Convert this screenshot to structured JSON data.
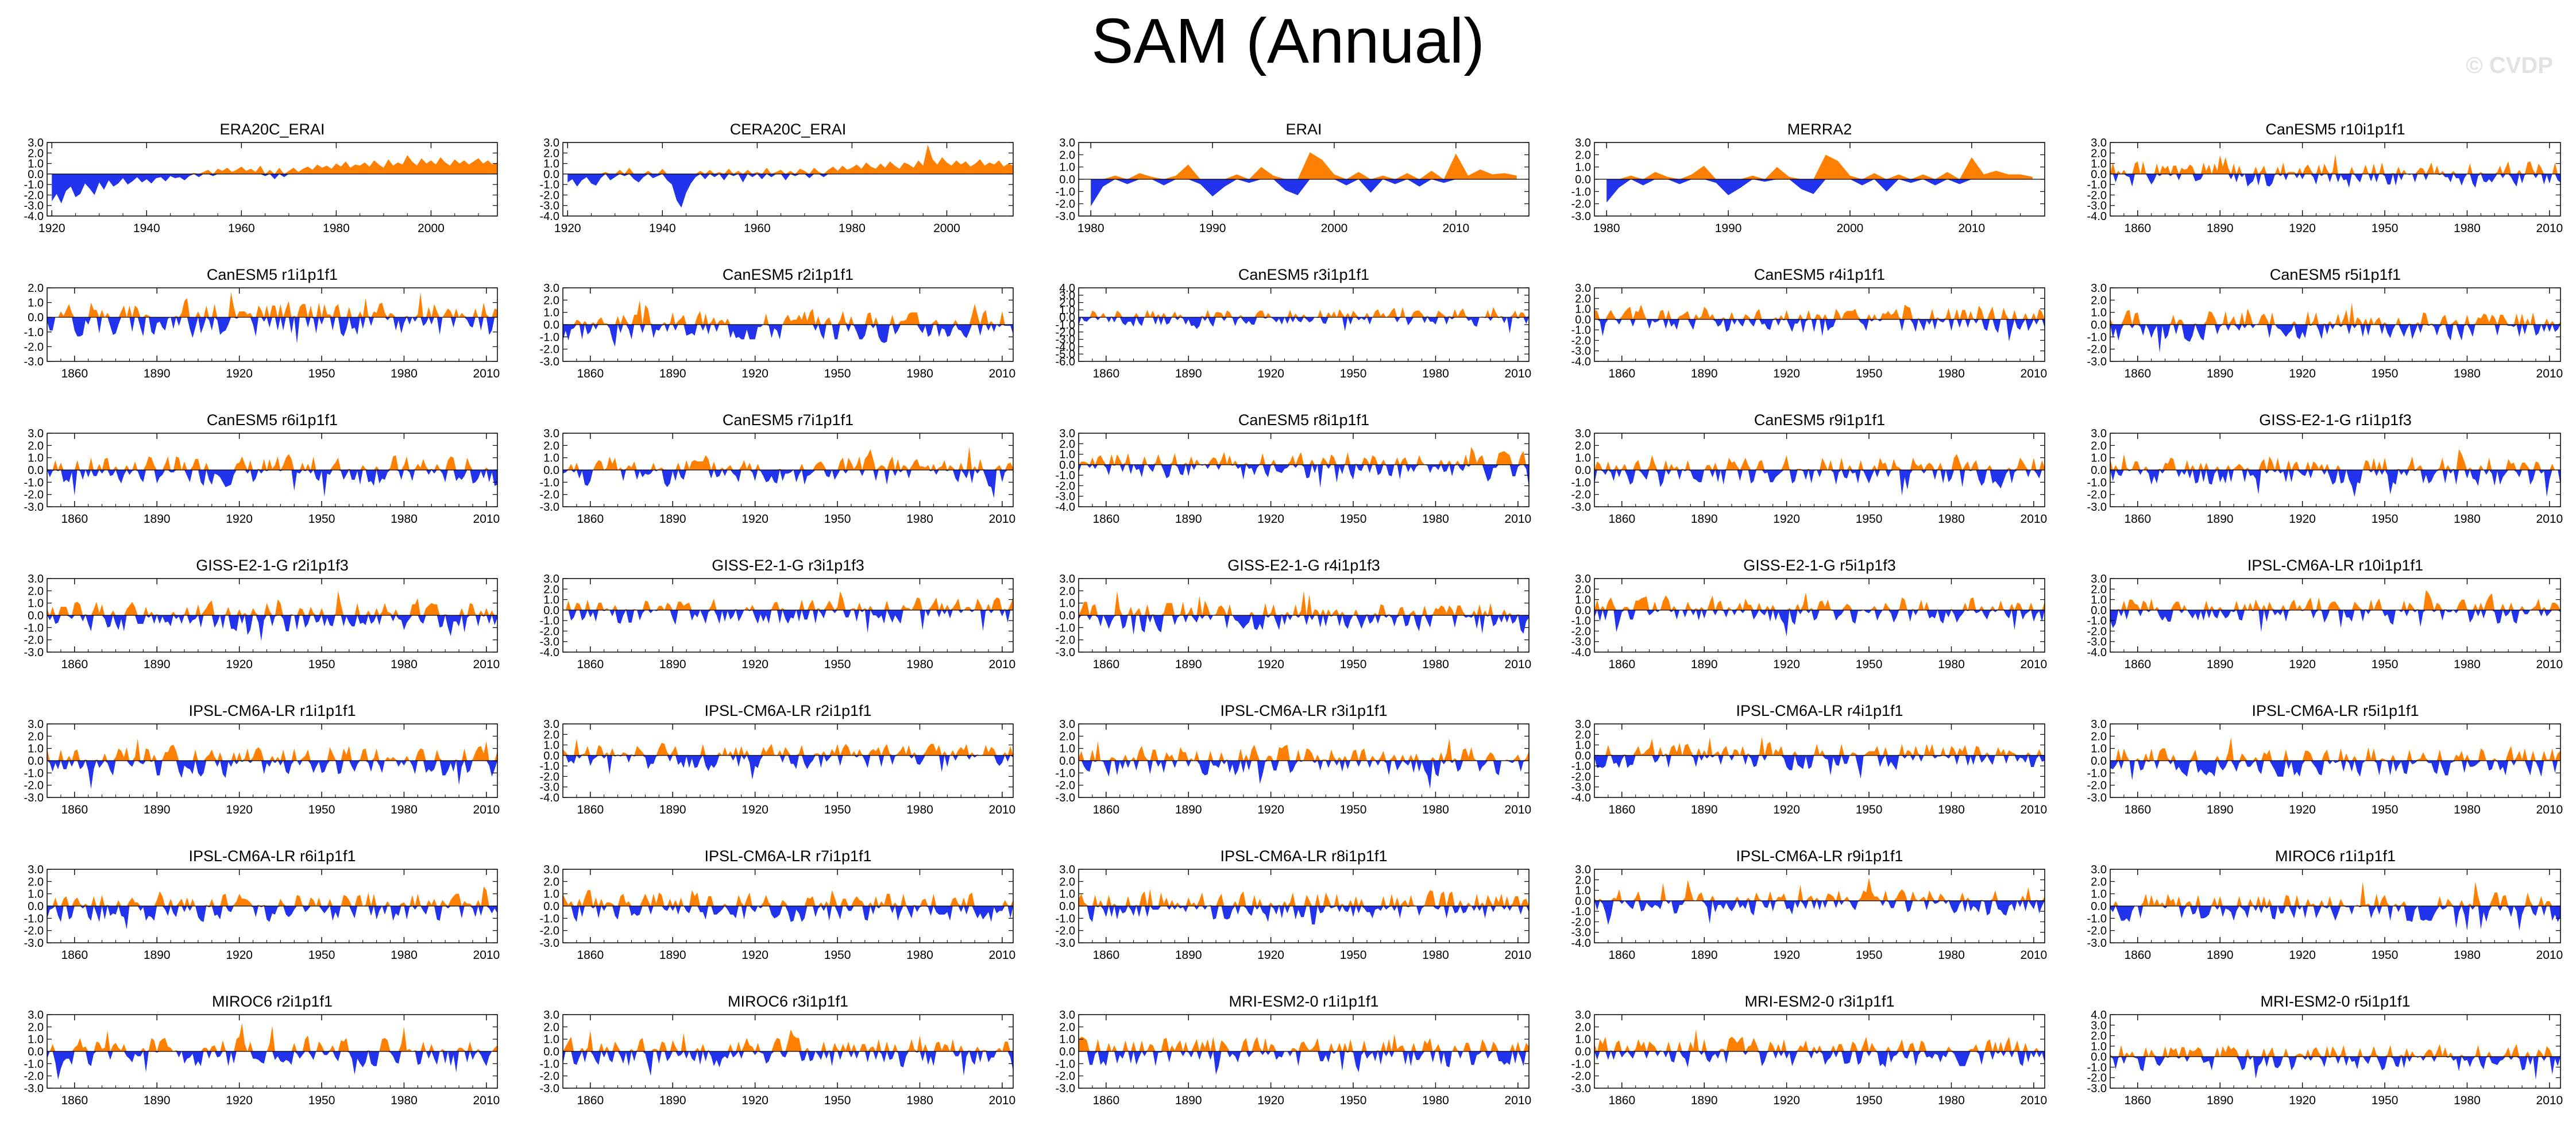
{
  "page": {
    "title": "SAM (Annual)",
    "watermark": "© CVDP"
  },
  "chart_data": [
    {
      "type": "area",
      "title": "ERA20C_ERAI",
      "xlim": [
        1919,
        2014
      ],
      "ylim": [
        -4,
        3
      ],
      "yticks": [
        3.0,
        2.0,
        1.0,
        0.0,
        -1.0,
        -2.0,
        -3.0,
        -4.0
      ],
      "xticks": [
        1920,
        1940,
        1960,
        1980,
        2000
      ],
      "x_start": 1920,
      "x_step": 1,
      "values": [
        -2.6,
        -1.9,
        -2.8,
        -1.6,
        -1.2,
        -2.2,
        -1.9,
        -0.9,
        -1.4,
        -2.0,
        -0.8,
        -1.5,
        -0.6,
        -1.2,
        -0.9,
        -0.4,
        -1.0,
        -0.7,
        -0.3,
        -0.8,
        -0.5,
        -0.9,
        -0.4,
        -0.3,
        -0.7,
        -0.2,
        -0.4,
        -0.3,
        -0.6,
        -0.2,
        0.1,
        -0.3,
        0.2,
        0.4,
        -0.2,
        0.5,
        0.3,
        0.6,
        0.2,
        0.4,
        0.7,
        0.3,
        0.5,
        0.2,
        0.8,
        -0.2,
        0.4,
        -0.5,
        0.6,
        -0.3,
        0.3,
        0.6,
        0.2,
        0.5,
        0.7,
        0.4,
        0.9,
        0.6,
        0.8,
        0.5,
        1.0,
        0.7,
        1.2,
        0.6,
        0.9,
        0.8,
        1.1,
        0.7,
        1.3,
        0.9,
        0.6,
        1.4,
        0.8,
        1.1,
        0.9,
        1.8,
        1.2,
        0.8,
        1.5,
        1.0,
        1.3,
        0.9,
        1.6,
        1.1,
        0.8,
        1.4,
        1.0,
        1.3,
        0.9,
        1.2,
        1.5,
        1.0,
        1.3,
        0.9,
        1.1
      ]
    },
    {
      "type": "area",
      "title": "CERA20C_ERAI",
      "xlim": [
        1919,
        2014
      ],
      "ylim": [
        -4,
        3
      ],
      "yticks": [
        3.0,
        2.0,
        1.0,
        0.0,
        -1.0,
        -2.0,
        -3.0,
        -4.0
      ],
      "xticks": [
        1920,
        1940,
        1960,
        1980,
        2000
      ],
      "x_start": 1920,
      "x_step": 1,
      "values": [
        -0.8,
        -0.5,
        -1.2,
        -0.6,
        -0.3,
        -0.9,
        -1.1,
        -0.4,
        0.2,
        -0.6,
        -0.3,
        0.4,
        -0.2,
        0.6,
        -0.5,
        -0.8,
        -0.3,
        0.3,
        -0.4,
        -0.2,
        0.5,
        -0.6,
        -1.0,
        -2.5,
        -3.2,
        -1.8,
        -0.9,
        -0.3,
        0.3,
        -0.5,
        0.4,
        -0.3,
        0.2,
        -0.6,
        0.5,
        -0.2,
        0.3,
        -0.8,
        0.4,
        -0.3,
        0.2,
        -0.5,
        0.6,
        -0.3,
        0.2,
        0.4,
        -0.6,
        0.3,
        -0.2,
        0.5,
        0.3,
        -0.4,
        0.6,
        0.2,
        -0.3,
        0.4,
        0.7,
        0.3,
        0.8,
        0.4,
        0.6,
        0.9,
        0.5,
        1.1,
        0.7,
        0.5,
        1.0,
        0.6,
        1.2,
        0.8,
        0.5,
        1.1,
        0.9,
        0.6,
        1.3,
        0.8,
        2.8,
        1.4,
        0.9,
        1.6,
        1.1,
        0.8,
        1.3,
        0.9,
        1.2,
        0.7,
        1.0,
        1.4,
        0.8,
        1.1,
        0.9,
        1.3,
        0.7,
        1.0,
        0.8
      ]
    },
    {
      "type": "area",
      "title": "ERAI",
      "xlim": [
        1979,
        2016
      ],
      "ylim": [
        -3,
        3
      ],
      "yticks": [
        3.0,
        2.0,
        1.0,
        0.0,
        -1.0,
        -2.0,
        -3.0
      ],
      "xticks": [
        1980,
        1990,
        2000,
        2010
      ],
      "x_start": 1980,
      "x_step": 1,
      "values": [
        -2.2,
        -0.6,
        0.3,
        -0.4,
        0.5,
        0.2,
        -0.5,
        0.3,
        1.2,
        -0.4,
        -1.4,
        -0.6,
        0.4,
        -0.3,
        1.0,
        0.3,
        -0.9,
        -1.3,
        2.2,
        1.6,
        0.4,
        -0.5,
        0.6,
        -1.1,
        0.3,
        -0.4,
        0.5,
        -0.6,
        0.7,
        -0.3,
        2.1,
        0.3,
        0.8,
        0.4,
        0.5,
        0.3
      ]
    },
    {
      "type": "area",
      "title": "MERRA2",
      "xlim": [
        1979,
        2016
      ],
      "ylim": [
        -3,
        3
      ],
      "yticks": [
        3.0,
        2.0,
        1.0,
        0.0,
        -1.0,
        -2.0,
        -3.0
      ],
      "xticks": [
        1980,
        1990,
        2000,
        2010
      ],
      "x_start": 1980,
      "x_step": 1,
      "values": [
        -1.9,
        -0.7,
        0.3,
        -0.5,
        0.6,
        0.2,
        -0.4,
        0.4,
        1.1,
        -0.3,
        -1.3,
        -0.7,
        0.3,
        -0.2,
        1.0,
        0.2,
        -0.8,
        -1.2,
        2.0,
        1.5,
        0.3,
        -0.5,
        0.5,
        -1.0,
        0.4,
        -0.3,
        0.4,
        -0.5,
        0.6,
        -0.4,
        1.8,
        0.4,
        0.7,
        0.4,
        0.4,
        0.2
      ]
    },
    {
      "title": "CanESM5 r10i1p1f1",
      "ylim": [
        -4,
        3
      ],
      "seed": 1
    },
    {
      "title": "CanESM5 r1i1p1f1",
      "ylim": [
        -3,
        2
      ],
      "seed": 2
    },
    {
      "title": "CanESM5 r2i1p1f1",
      "ylim": [
        -3,
        3
      ],
      "seed": 3
    },
    {
      "title": "CanESM5 r3i1p1f1",
      "ylim": [
        -6,
        4
      ],
      "seed": 4
    },
    {
      "title": "CanESM5 r4i1p1f1",
      "ylim": [
        -4,
        3
      ],
      "seed": 5
    },
    {
      "title": "CanESM5 r5i1p1f1",
      "ylim": [
        -3,
        3
      ],
      "seed": 6
    },
    {
      "title": "CanESM5 r6i1p1f1",
      "ylim": [
        -3,
        3
      ],
      "seed": 7
    },
    {
      "title": "CanESM5 r7i1p1f1",
      "ylim": [
        -3,
        3
      ],
      "seed": 8
    },
    {
      "title": "CanESM5 r8i1p1f1",
      "ylim": [
        -4,
        3
      ],
      "seed": 9
    },
    {
      "title": "CanESM5 r9i1p1f1",
      "ylim": [
        -3,
        3
      ],
      "seed": 10
    },
    {
      "title": "GISS-E2-1-G r1i1p1f3",
      "ylim": [
        -3,
        3
      ],
      "seed": 11
    },
    {
      "title": "GISS-E2-1-G r2i1p1f3",
      "ylim": [
        -3,
        3
      ],
      "seed": 12
    },
    {
      "title": "GISS-E2-1-G r3i1p1f3",
      "ylim": [
        -4,
        3
      ],
      "seed": 13
    },
    {
      "title": "GISS-E2-1-G r4i1p1f3",
      "ylim": [
        -3,
        3
      ],
      "seed": 14
    },
    {
      "title": "GISS-E2-1-G r5i1p1f3",
      "ylim": [
        -4,
        3
      ],
      "seed": 15
    },
    {
      "title": "IPSL-CM6A-LR r10i1p1f1",
      "ylim": [
        -4,
        3
      ],
      "seed": 16
    },
    {
      "title": "IPSL-CM6A-LR r1i1p1f1",
      "ylim": [
        -3,
        3
      ],
      "seed": 17
    },
    {
      "title": "IPSL-CM6A-LR r2i1p1f1",
      "ylim": [
        -4,
        3
      ],
      "seed": 18
    },
    {
      "title": "IPSL-CM6A-LR r3i1p1f1",
      "ylim": [
        -3,
        3
      ],
      "seed": 19
    },
    {
      "title": "IPSL-CM6A-LR r4i1p1f1",
      "ylim": [
        -4,
        3
      ],
      "seed": 20
    },
    {
      "title": "IPSL-CM6A-LR r5i1p1f1",
      "ylim": [
        -3,
        3
      ],
      "seed": 21
    },
    {
      "title": "IPSL-CM6A-LR r6i1p1f1",
      "ylim": [
        -3,
        3
      ],
      "seed": 22
    },
    {
      "title": "IPSL-CM6A-LR r7i1p1f1",
      "ylim": [
        -3,
        3
      ],
      "seed": 23
    },
    {
      "title": "IPSL-CM6A-LR r8i1p1f1",
      "ylim": [
        -3,
        3
      ],
      "seed": 24
    },
    {
      "title": "IPSL-CM6A-LR r9i1p1f1",
      "ylim": [
        -4,
        3
      ],
      "seed": 25
    },
    {
      "title": "MIROC6 r1i1p1f1",
      "ylim": [
        -3,
        3
      ],
      "seed": 26
    },
    {
      "title": "MIROC6 r2i1p1f1",
      "ylim": [
        -3,
        3
      ],
      "seed": 27
    },
    {
      "title": "MIROC6 r3i1p1f1",
      "ylim": [
        -3,
        3
      ],
      "seed": 28
    },
    {
      "title": "MRI-ESM2-0 r1i1p1f1",
      "ylim": [
        -3,
        3
      ],
      "seed": 29
    },
    {
      "title": "MRI-ESM2-0 r3i1p1f1",
      "ylim": [
        -3,
        3
      ],
      "seed": 30
    },
    {
      "title": "MRI-ESM2-0 r5i1p1f1",
      "ylim": [
        -3,
        4
      ],
      "seed": 31
    }
  ],
  "model_panel_defaults": {
    "type": "area",
    "xlim": [
      1850,
      2014
    ],
    "xticks": [
      1860,
      1890,
      1920,
      1950,
      1980,
      2010
    ],
    "x_start": 1850,
    "x_end": 2014,
    "x_step": 1,
    "positive_color": "#ff8000",
    "negative_color": "#2233ee"
  }
}
